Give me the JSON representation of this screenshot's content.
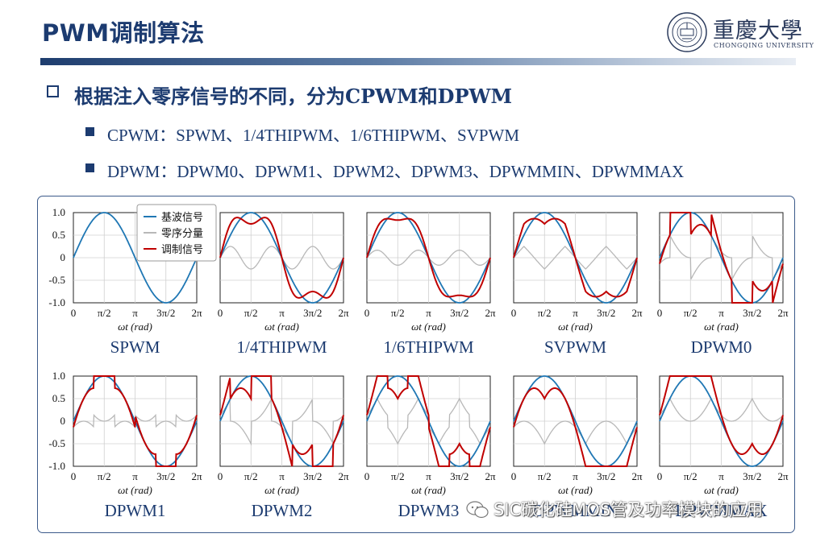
{
  "title": "PWM调制算法",
  "logo": {
    "name_cn": "重慶大學",
    "name_en": "CHONGQING UNIVERSITY"
  },
  "heading": "根据注入零序信号的不同，分为CPWM和DPWM",
  "bullets": [
    "CPWM：SPWM、1/4THIPWM、1/6THIPWM、SVPWM",
    "DPWM：DPWM0、DPWM1、DPWM2、DPWM3、DPWMMIN、DPWMMAX"
  ],
  "legend": [
    "基波信号",
    "零序分量",
    "调制信号"
  ],
  "colors": {
    "fundamental": "#1f77b4",
    "zero_sequence": "#b8b8b8",
    "modulated": "#c00000",
    "accent": "#1c3b70"
  },
  "watermark": "SIC碳化硅MOS管及功率模块的应用",
  "chart_data": {
    "type": "line",
    "x_ticks": [
      "0",
      "π/2",
      "π",
      "3π/2",
      "2π"
    ],
    "xlabel": "ωt (rad)",
    "y_ticks": [
      "1.0",
      "0.5",
      "0",
      "-0.5",
      "-1.0"
    ],
    "xlim": [
      0,
      6.2832
    ],
    "ylim": [
      -1,
      1
    ],
    "grid": true,
    "legend_position": "top-right of first subplot",
    "modulation_index": 1.0,
    "subplots": [
      {
        "label": "SPWM",
        "zero_sequence": "none"
      },
      {
        "label": "1/4THIPWM",
        "zero_sequence": "third harmonic, amplitude 1/4"
      },
      {
        "label": "1/6THIPWM",
        "zero_sequence": "third harmonic, amplitude 1/6"
      },
      {
        "label": "SVPWM",
        "zero_sequence": "min-max (triangular)"
      },
      {
        "label": "DPWM0",
        "zero_sequence": "discontinuous, 30° shift"
      },
      {
        "label": "DPWM1",
        "zero_sequence": "discontinuous, clamp at peak"
      },
      {
        "label": "DPWM2",
        "zero_sequence": "discontinuous, -30° shift"
      },
      {
        "label": "DPWM3",
        "zero_sequence": "discontinuous, clamp on middle phase"
      },
      {
        "label": "DPWMMIN",
        "zero_sequence": "clamp to lower rail"
      },
      {
        "label": "DPWMMAX",
        "zero_sequence": "clamp to upper rail"
      }
    ]
  }
}
